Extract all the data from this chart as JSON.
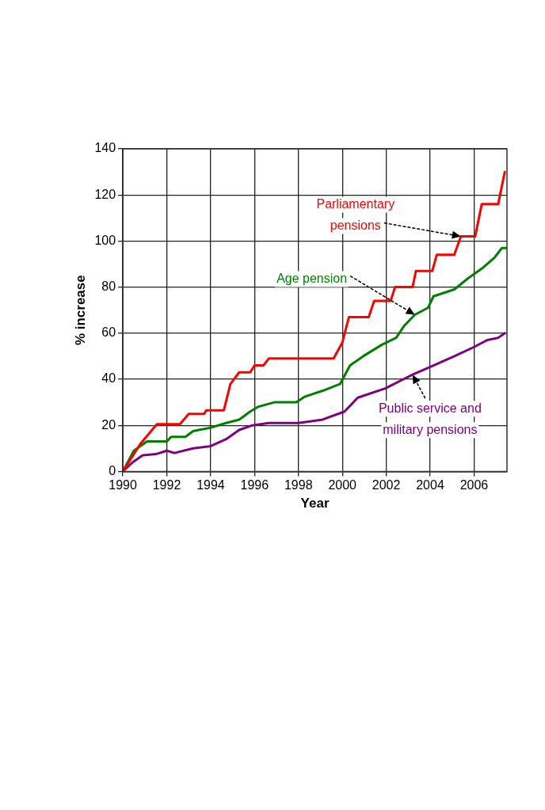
{
  "chart_data": {
    "type": "line",
    "xlabel": "Year",
    "ylabel": "% increase",
    "xlim": [
      1990,
      2007.5
    ],
    "xticks": [
      1990,
      1992,
      1994,
      1996,
      1998,
      2000,
      2002,
      2004,
      2006
    ],
    "ylim": [
      0,
      140
    ],
    "yticks": [
      0,
      20,
      40,
      60,
      80,
      100,
      120,
      140
    ],
    "grid": true,
    "legend": false,
    "marker": "none",
    "line_style": "solid",
    "series": [
      {
        "name": "Parliamentary pensions",
        "color": "#ff0000",
        "x": [
          1990,
          1990.8,
          1991.55,
          1992.6,
          1993,
          1993.7,
          1993.8,
          1994.6,
          1994.9,
          1995.3,
          1995.8,
          1996,
          1996.4,
          1996.65,
          1999.6,
          2000,
          2000.3,
          2001.2,
          2001.45,
          2002.2,
          2002.4,
          2003.2,
          2003.35,
          2004.1,
          2004.3,
          2005.1,
          2005.4,
          2006.05,
          2006.35,
          2007.1,
          2007.4
        ],
        "values": [
          0,
          12,
          20.5,
          20.5,
          25,
          25,
          26.5,
          26.5,
          38,
          43,
          43,
          46,
          46,
          49,
          49,
          56,
          67,
          67,
          74,
          74,
          80,
          80,
          87,
          87,
          94,
          94,
          102,
          102,
          116,
          116,
          130
        ]
      },
      {
        "name": "Age pension",
        "color": "#008000",
        "x": [
          1990,
          1990.5,
          1991.1,
          1992,
          1992.2,
          1992.85,
          1993.2,
          1994,
          1994.7,
          1995.3,
          1995.8,
          1996.15,
          1996.9,
          1997.9,
          1998.3,
          1999.1,
          1999.9,
          2000.35,
          2000.95,
          2001.8,
          2002.45,
          2002.8,
          2003.3,
          2003.9,
          2004.15,
          2005.1,
          2005.75,
          2006.35,
          2006.95,
          2007.27,
          2007.45
        ],
        "values": [
          0,
          9,
          13,
          13,
          15,
          15,
          17.5,
          19,
          21,
          22.5,
          26,
          28,
          30,
          30,
          32.5,
          35,
          38,
          46,
          50,
          55,
          58,
          63,
          68,
          71,
          76,
          79,
          84,
          88,
          93,
          97,
          97
        ]
      },
      {
        "name": "Public service and military pensions",
        "color": "#800080",
        "x": [
          1990,
          1990.45,
          1990.9,
          1991.5,
          1992,
          1992.35,
          1993.2,
          1994,
          1994.7,
          1995.3,
          1995.9,
          1996.65,
          1998,
          1999.1,
          2000.1,
          2000.7,
          2001.95,
          2003.2,
          2004.15,
          2005.1,
          2006,
          2006.6,
          2007.1,
          2007.4
        ],
        "values": [
          0,
          4,
          7,
          7.5,
          9,
          8,
          10,
          11,
          14,
          18,
          20,
          21,
          21,
          22.5,
          26,
          32,
          36,
          42,
          46,
          50,
          54,
          57,
          58,
          60
        ]
      }
    ]
  }
}
